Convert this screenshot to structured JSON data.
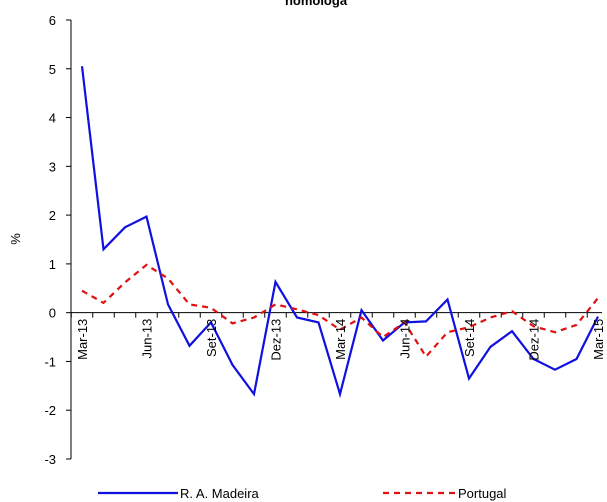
{
  "chart_data": {
    "type": "line",
    "title": "homóloga",
    "xlabel": "",
    "ylabel": "%",
    "ylim": [
      -3,
      6
    ],
    "yticks": [
      -3,
      -2,
      -1,
      0,
      1,
      2,
      3,
      4,
      5,
      6
    ],
    "grid": false,
    "legend_position": "bottom",
    "x": [
      "Mar-13",
      "Abr-13",
      "Mai-13",
      "Jun-13",
      "Jul-13",
      "Ago-13",
      "Set-13",
      "Out-13",
      "Nov-13",
      "Dez-13",
      "Jan-14",
      "Fev-14",
      "Mar-14",
      "Abr-14",
      "Mai-14",
      "Jun-14",
      "Jul-14",
      "Ago-14",
      "Set-14",
      "Out-14",
      "Nov-14",
      "Dez-14",
      "Jan-15",
      "Fev-15",
      "Mar-15"
    ],
    "tick_labels": [
      "Mar-13",
      "Jun-13",
      "Set-13",
      "Dez-13",
      "Mar-14",
      "Jun-14",
      "Set-14",
      "Dez-14",
      "Mar-15"
    ],
    "tick_indices": [
      0,
      3,
      6,
      9,
      12,
      15,
      18,
      21,
      24
    ],
    "series": [
      {
        "name": "R. A. Madeira",
        "color": "#1010e0",
        "style": "solid",
        "values": [
          5.05,
          1.3,
          1.75,
          1.97,
          0.17,
          -0.68,
          -0.2,
          -1.07,
          -1.67,
          0.63,
          -0.1,
          -0.2,
          -1.67,
          0.05,
          -0.57,
          -0.2,
          -0.18,
          0.27,
          -1.35,
          -0.7,
          -0.38,
          -0.95,
          -1.17,
          -0.95,
          -0.08
        ]
      },
      {
        "name": "Portugal",
        "color": "#e01010",
        "style": "dashed",
        "values": [
          0.45,
          0.2,
          0.62,
          0.98,
          0.7,
          0.17,
          0.1,
          -0.22,
          -0.1,
          0.17,
          0.07,
          -0.05,
          -0.35,
          -0.1,
          -0.5,
          -0.2,
          -0.9,
          -0.4,
          -0.3,
          -0.1,
          0.03,
          -0.28,
          -0.4,
          -0.25,
          0.3
        ]
      }
    ]
  }
}
